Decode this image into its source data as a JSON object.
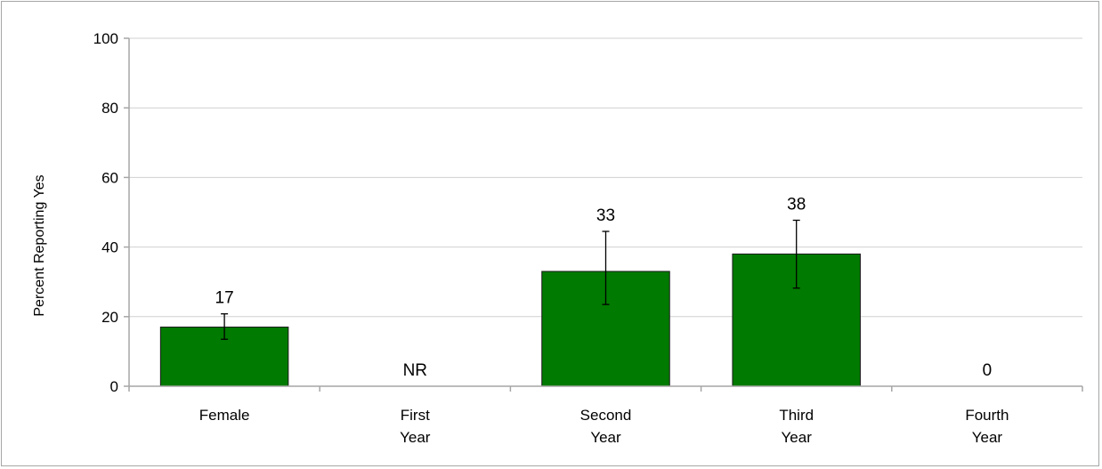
{
  "chart_data": {
    "type": "bar",
    "categories": [
      [
        "Female"
      ],
      [
        "First",
        "Year"
      ],
      [
        "Second",
        "Year"
      ],
      [
        "Third",
        "Year"
      ],
      [
        "Fourth",
        "Year"
      ]
    ],
    "values": [
      17,
      null,
      33,
      38,
      0
    ],
    "value_labels": [
      "17",
      "NR",
      "33",
      "38",
      "0"
    ],
    "error_bars": [
      [
        13.5,
        20.8
      ],
      null,
      [
        23.5,
        44.5
      ],
      [
        28.2,
        47.7
      ],
      null
    ],
    "title": "",
    "xlabel": "",
    "ylabel": "Percent Reporting Yes",
    "ylim": [
      0,
      100
    ],
    "yticks": [
      0,
      20,
      40,
      60,
      80,
      100
    ],
    "grid": true,
    "legend": "none",
    "colors": {
      "bar": "#007a00",
      "bar_stroke": "#1a1a1a",
      "grid": "#d0d0d0",
      "axis": "#a6a6a6"
    }
  }
}
